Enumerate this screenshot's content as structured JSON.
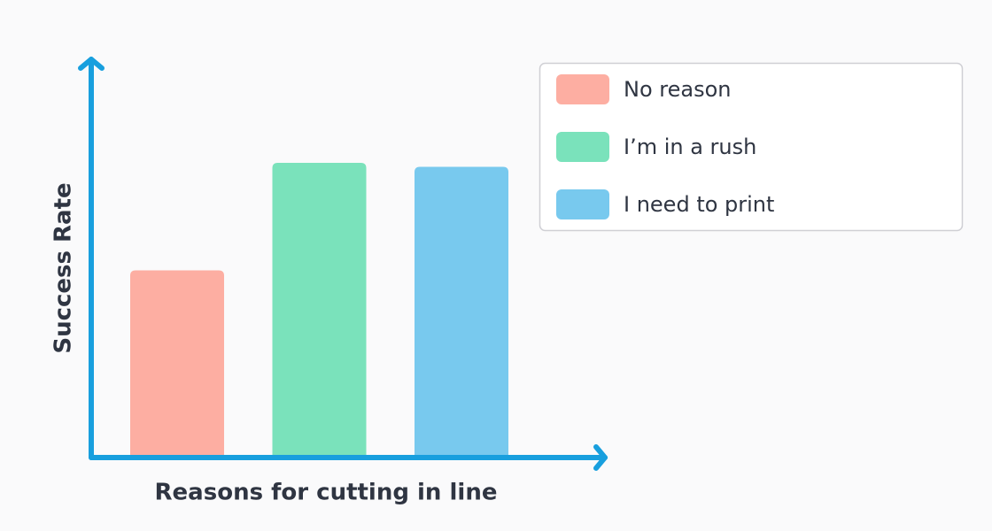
{
  "chart_data": {
    "type": "bar",
    "x_label": "Reasons for cutting in line",
    "y_label": "Success Rate",
    "categories": [
      "No reason",
      "I’m in a rush",
      "I need to print"
    ],
    "values": [
      47,
      74,
      73
    ],
    "colors": [
      "#fdaea2",
      "#7ae2bb",
      "#78c9ee"
    ],
    "ylim": [
      0,
      100
    ],
    "legend": "upper right",
    "axis_color": "#189fde"
  }
}
